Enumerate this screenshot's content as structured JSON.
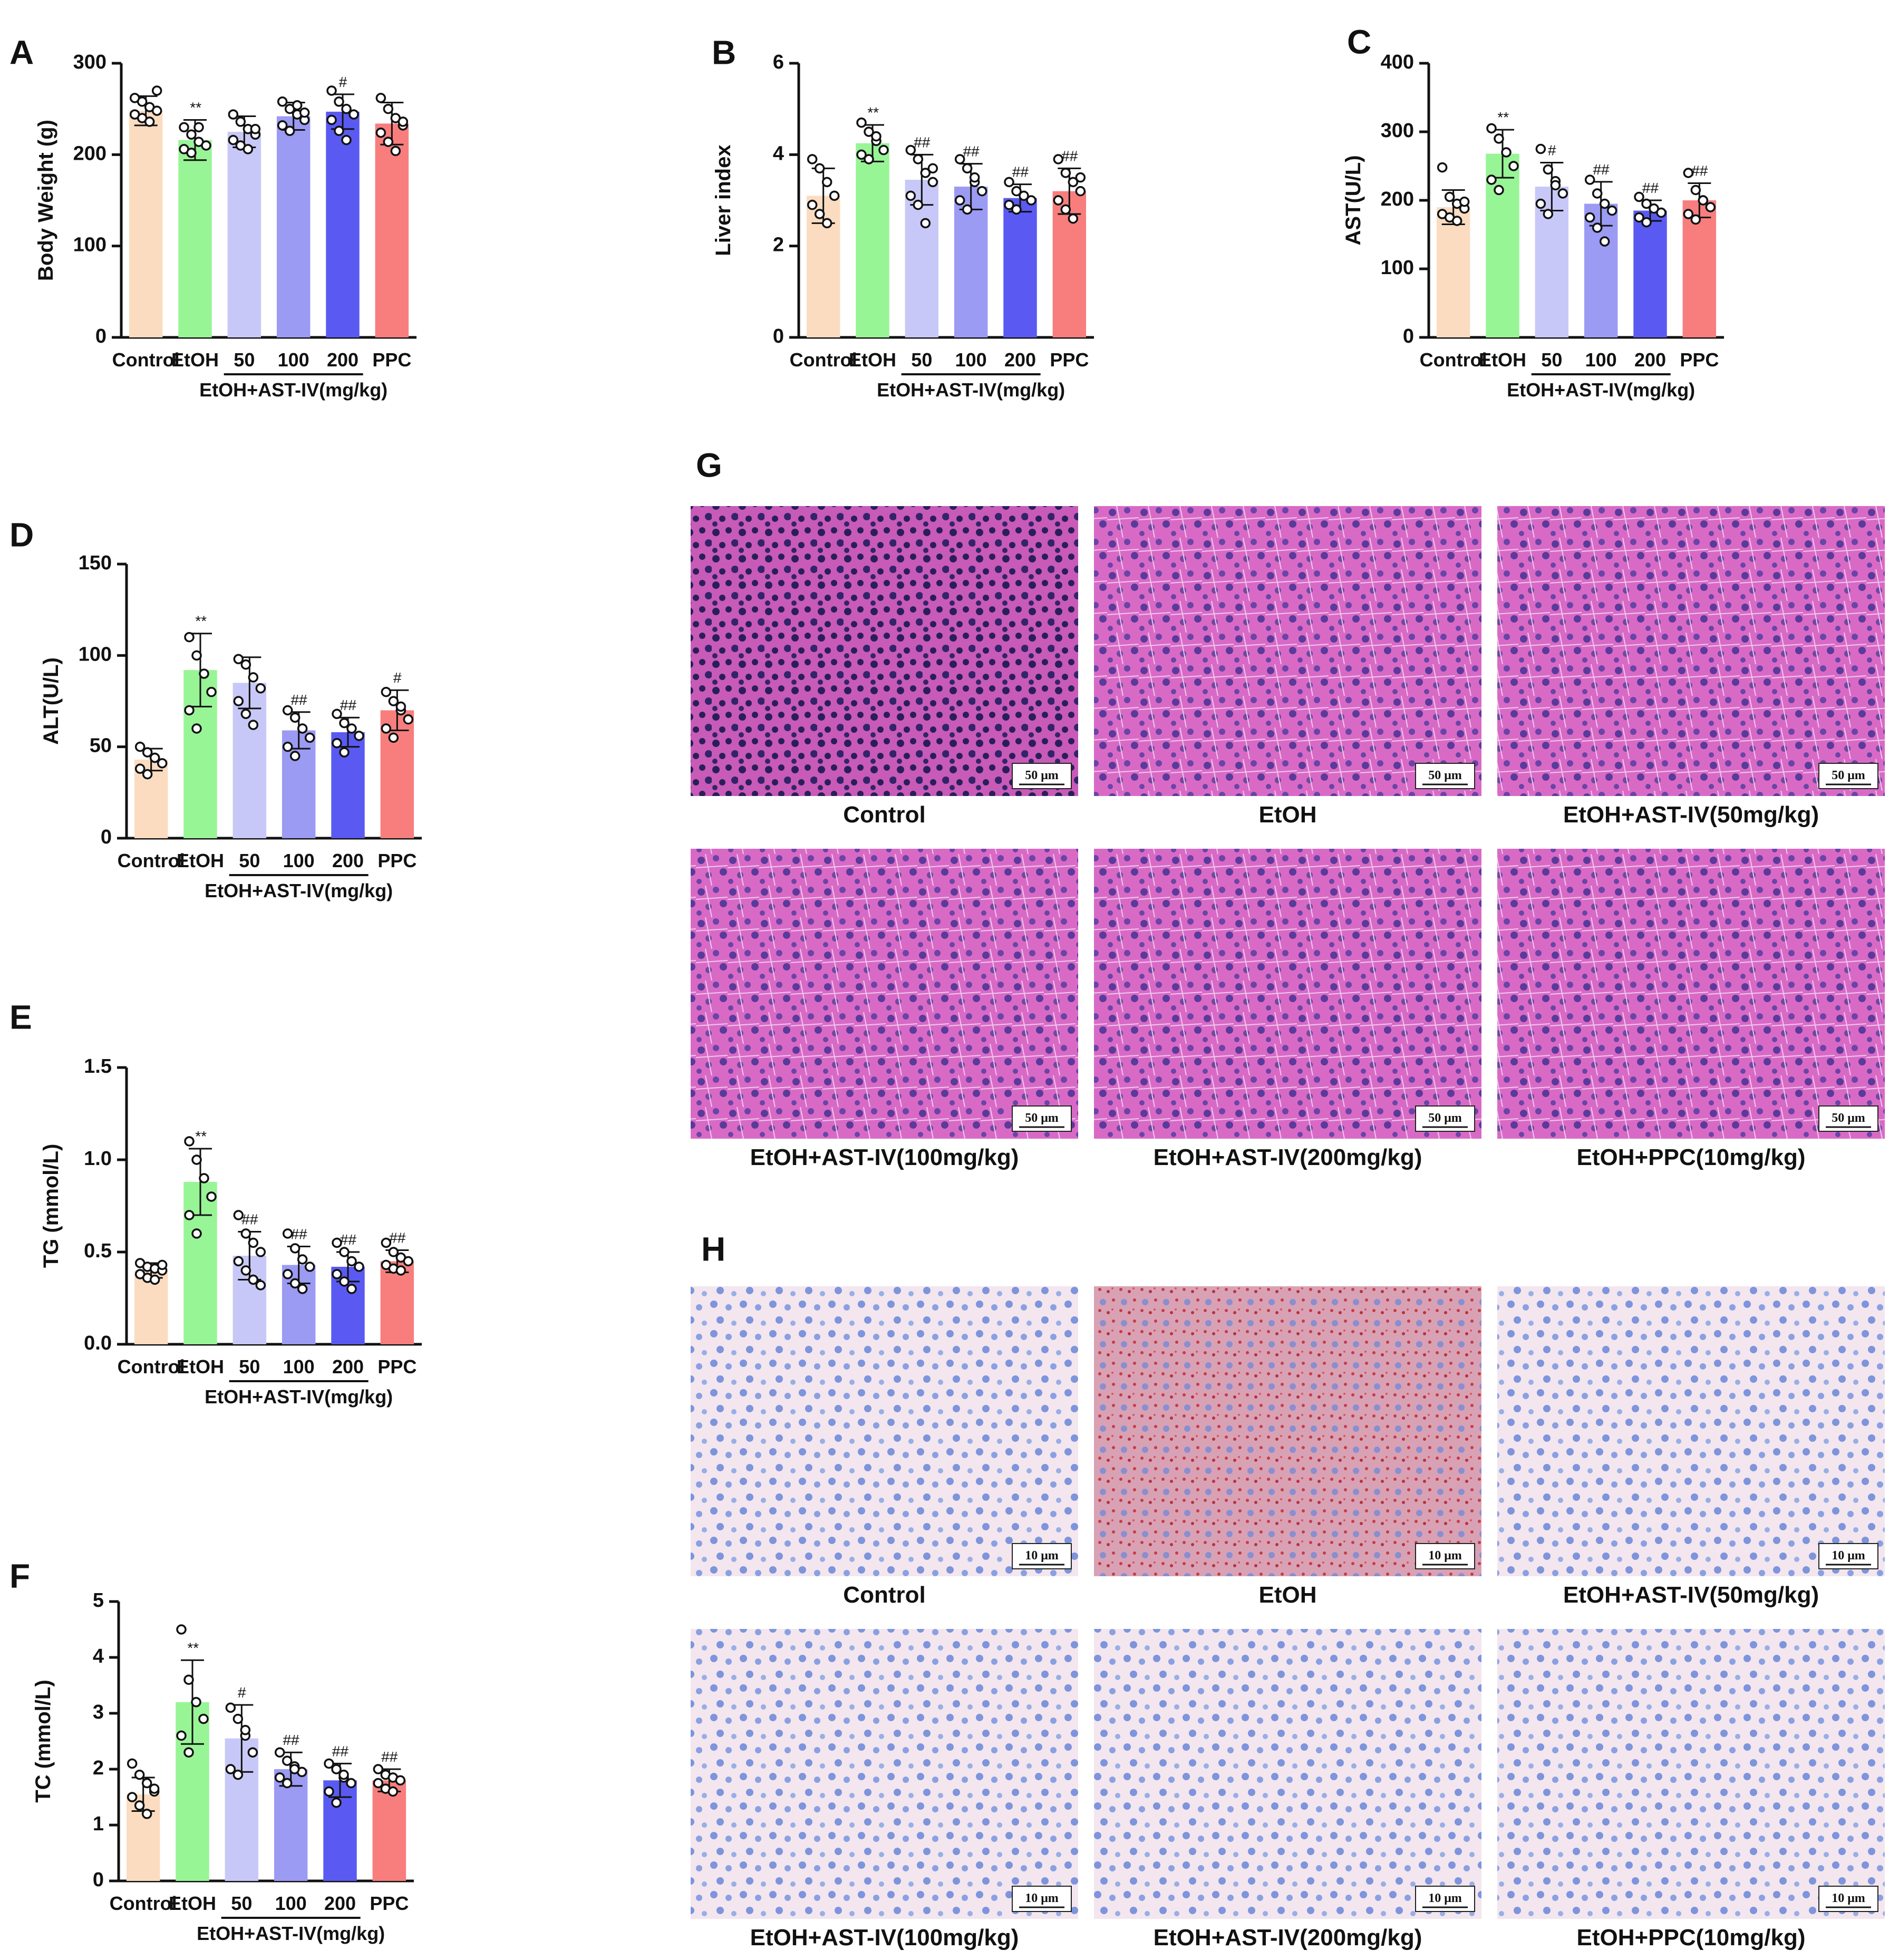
{
  "figure": {
    "groups_common": [
      "Control",
      "EtOH",
      "50",
      "100",
      "200",
      "PPC"
    ],
    "group_colors": [
      "#fcdcc0",
      "#98f596",
      "#c8c8f8",
      "#9b9bf4",
      "#5a5af2",
      "#f87e7e"
    ],
    "bracket_label": "EtOH+AST-IV(mg/kg)"
  },
  "chart_data": [
    {
      "panel": "A",
      "type": "bar",
      "ylabel": "Body Weight (g)",
      "ylim": [
        0,
        300
      ],
      "yticks": [
        "0",
        "100",
        "200",
        "300"
      ],
      "categories": [
        "Control",
        "EtOH",
        "50",
        "100",
        "200",
        "PPC"
      ],
      "values": [
        248,
        216,
        225,
        242,
        247,
        234
      ],
      "sd": [
        16,
        22,
        17,
        15,
        19,
        23
      ],
      "sig": [
        "",
        "**",
        "",
        "",
        "#",
        ""
      ],
      "points": [
        [
          262,
          258,
          252,
          248,
          244,
          240,
          236,
          270
        ],
        [
          230,
          222,
          214,
          210,
          206,
          202,
          230
        ],
        [
          244,
          236,
          228,
          222,
          216,
          210,
          206,
          228
        ],
        [
          258,
          250,
          244,
          238,
          232,
          226,
          254,
          246
        ],
        [
          270,
          258,
          250,
          244,
          238,
          226,
          216
        ],
        [
          262,
          250,
          240,
          232,
          224,
          214,
          204,
          236
        ]
      ]
    },
    {
      "panel": "B",
      "type": "bar",
      "ylabel": "Liver index",
      "ylim": [
        0,
        6
      ],
      "yticks": [
        "0",
        "2",
        "4",
        "6"
      ],
      "categories": [
        "Control",
        "EtOH",
        "50",
        "100",
        "200",
        "PPC"
      ],
      "values": [
        3.1,
        4.25,
        3.45,
        3.3,
        3.05,
        3.2
      ],
      "sd": [
        0.6,
        0.4,
        0.55,
        0.5,
        0.3,
        0.5
      ],
      "sig": [
        "",
        "**",
        "##",
        "##",
        "##",
        "##"
      ],
      "points": [
        [
          3.9,
          3.7,
          3.4,
          3.1,
          2.9,
          2.7,
          2.5
        ],
        [
          4.7,
          4.5,
          4.3,
          4.1,
          4.0,
          3.9,
          4.4
        ],
        [
          4.1,
          3.9,
          3.6,
          3.4,
          3.1,
          2.9,
          2.5,
          3.7
        ],
        [
          3.9,
          3.7,
          3.4,
          3.2,
          3.0,
          2.8,
          3.5
        ],
        [
          3.4,
          3.2,
          3.1,
          3.0,
          2.9,
          2.8
        ],
        [
          3.9,
          3.6,
          3.4,
          3.2,
          3.0,
          2.8,
          2.6,
          3.5
        ]
      ]
    },
    {
      "panel": "C",
      "type": "bar",
      "ylabel": "AST(U/L)",
      "ylim": [
        0,
        400
      ],
      "yticks": [
        "0",
        "100",
        "200",
        "300",
        "400"
      ],
      "categories": [
        "Control",
        "EtOH",
        "50",
        "100",
        "200",
        "PPC"
      ],
      "values": [
        190,
        268,
        220,
        195,
        185,
        200
      ],
      "sd": [
        25,
        35,
        35,
        32,
        15,
        25
      ],
      "sig": [
        "",
        "**",
        "#",
        "##",
        "##",
        "##"
      ],
      "points": [
        [
          248,
          205,
          195,
          188,
          180,
          175,
          170,
          198
        ],
        [
          305,
          290,
          270,
          250,
          230,
          215
        ],
        [
          275,
          245,
          228,
          210,
          195,
          180,
          222
        ],
        [
          230,
          210,
          195,
          185,
          175,
          160,
          140
        ],
        [
          205,
          195,
          188,
          182,
          175,
          168
        ],
        [
          240,
          215,
          200,
          190,
          180,
          172,
          200
        ]
      ]
    },
    {
      "panel": "D",
      "type": "bar",
      "ylabel": "ALT(U/L)",
      "ylim": [
        0,
        150
      ],
      "yticks": [
        "0",
        "50",
        "100",
        "150"
      ],
      "categories": [
        "Control",
        "EtOH",
        "50",
        "100",
        "200",
        "PPC"
      ],
      "values": [
        43,
        92,
        85,
        59,
        58,
        70
      ],
      "sd": [
        6,
        20,
        14,
        10,
        8,
        11
      ],
      "sig": [
        "",
        "**",
        "",
        "##",
        "##",
        "#"
      ],
      "points": [
        [
          50,
          47,
          44,
          41,
          38,
          35,
          44
        ],
        [
          110,
          100,
          90,
          80,
          70,
          60
        ],
        [
          98,
          95,
          88,
          82,
          75,
          68,
          62
        ],
        [
          70,
          66,
          60,
          55,
          50,
          45
        ],
        [
          68,
          63,
          60,
          56,
          52,
          47
        ],
        [
          80,
          75,
          70,
          65,
          60,
          55,
          72
        ]
      ]
    },
    {
      "panel": "E",
      "type": "bar",
      "ylabel": "TG (mmol/L)",
      "ylim": [
        0,
        1.5
      ],
      "yticks": [
        "0.0",
        "0.5",
        "1.0",
        "1.5"
      ],
      "categories": [
        "Control",
        "EtOH",
        "50",
        "100",
        "200",
        "PPC"
      ],
      "values": [
        0.4,
        0.88,
        0.48,
        0.43,
        0.42,
        0.45
      ],
      "sd": [
        0.04,
        0.18,
        0.13,
        0.1,
        0.08,
        0.06
      ],
      "sig": [
        "",
        "**",
        "##",
        "##",
        "##",
        "##"
      ],
      "points": [
        [
          0.44,
          0.42,
          0.41,
          0.4,
          0.38,
          0.36,
          0.35,
          0.43
        ],
        [
          1.1,
          1.0,
          0.9,
          0.8,
          0.7,
          0.6
        ],
        [
          0.7,
          0.6,
          0.55,
          0.5,
          0.45,
          0.4,
          0.35,
          0.32
        ],
        [
          0.6,
          0.52,
          0.46,
          0.42,
          0.38,
          0.33,
          0.3
        ],
        [
          0.55,
          0.5,
          0.45,
          0.42,
          0.38,
          0.34,
          0.3
        ],
        [
          0.55,
          0.5,
          0.47,
          0.45,
          0.43,
          0.41,
          0.4
        ]
      ]
    },
    {
      "panel": "F",
      "type": "bar",
      "ylabel": "TC (mmol/L)",
      "ylim": [
        0,
        5
      ],
      "yticks": [
        "0",
        "1",
        "2",
        "3",
        "4",
        "5"
      ],
      "categories": [
        "Control",
        "EtOH",
        "50",
        "100",
        "200",
        "PPC"
      ],
      "values": [
        1.55,
        3.2,
        2.55,
        2.0,
        1.8,
        1.8
      ],
      "sd": [
        0.3,
        0.75,
        0.6,
        0.3,
        0.3,
        0.2
      ],
      "sig": [
        "",
        "**",
        "#",
        "##",
        "##",
        "##"
      ],
      "points": [
        [
          2.1,
          1.9,
          1.75,
          1.6,
          1.5,
          1.35,
          1.2,
          1.65
        ],
        [
          4.5,
          3.6,
          3.2,
          2.9,
          2.6,
          2.3
        ],
        [
          3.1,
          2.9,
          2.6,
          2.3,
          2.0,
          1.9,
          2.7
        ],
        [
          2.3,
          2.15,
          2.05,
          1.95,
          1.85,
          1.75,
          2.0
        ],
        [
          2.1,
          2.0,
          1.85,
          1.75,
          1.6,
          1.4,
          1.9
        ],
        [
          2.0,
          1.9,
          1.85,
          1.8,
          1.75,
          1.65,
          1.6
        ]
      ]
    }
  ],
  "panel_letters": {
    "G": "G",
    "H": "H"
  },
  "histology": {
    "G": {
      "scale_text": "50 μm",
      "labels": [
        "Control",
        "EtOH",
        "EtOH+AST-IV(50mg/kg)",
        "EtOH+AST-IV(100mg/kg)",
        "EtOH+AST-IV(200mg/kg)",
        "EtOH+PPC(10mg/kg)"
      ],
      "tissue_color": "#d866c8"
    },
    "H": {
      "scale_text": "10 μm",
      "labels": [
        "Control",
        "EtOH",
        "EtOH+AST-IV(50mg/kg)",
        "EtOH+AST-IV(100mg/kg)",
        "EtOH+AST-IV(200mg/kg)",
        "EtOH+PPC(10mg/kg)"
      ],
      "tissue_color": "#f2e4ec"
    }
  }
}
